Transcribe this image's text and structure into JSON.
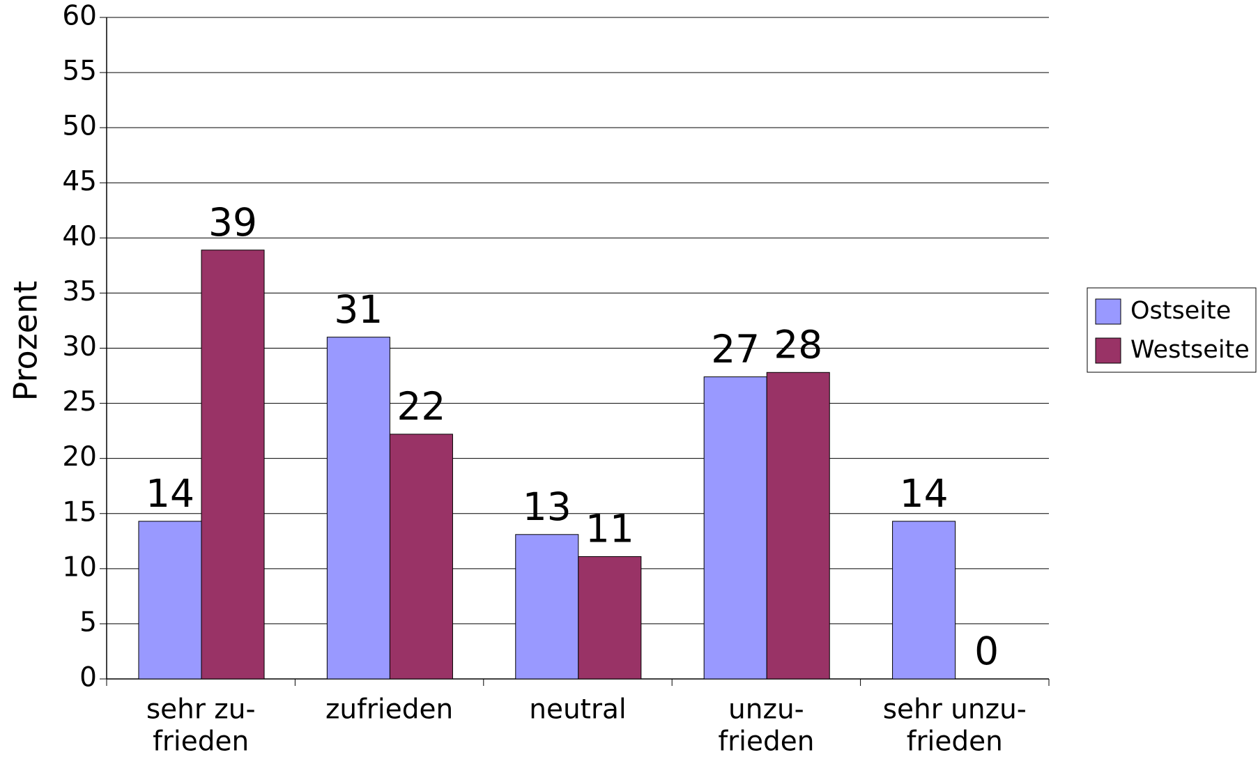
{
  "chart_data": {
    "type": "bar",
    "y_label": "Prozent",
    "categories": [
      [
        "sehr zu-",
        "frieden"
      ],
      [
        "zufrieden"
      ],
      [
        "neutral"
      ],
      [
        "unzu-",
        "frieden"
      ],
      [
        "sehr unzu-",
        "frieden"
      ]
    ],
    "series": [
      {
        "name": "Ostseite",
        "color": "#9999ff",
        "values": [
          14.3,
          31,
          13.1,
          27.4,
          14.3
        ],
        "value_labels": [
          "14",
          "31",
          "13",
          "27",
          "14"
        ]
      },
      {
        "name": "Westseite",
        "color": "#993366",
        "values": [
          38.9,
          22.2,
          11.1,
          27.8,
          0
        ],
        "value_labels": [
          "39",
          "22",
          "11",
          "28",
          "0"
        ]
      }
    ],
    "ylim": [
      0,
      60
    ],
    "yticks": [
      0,
      5,
      10,
      15,
      20,
      25,
      30,
      35,
      40,
      45,
      50,
      55,
      60
    ],
    "grid": true,
    "legend": "right"
  }
}
